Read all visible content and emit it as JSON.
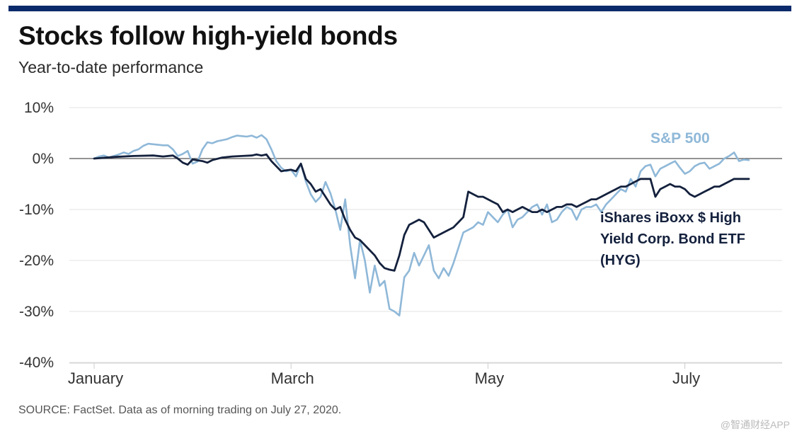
{
  "header": {
    "title": "Stocks follow high-yield bonds",
    "subtitle": "Year-to-date performance"
  },
  "footer": {
    "source": "SOURCE: FactSet. Data as of morning trading on July 27, 2020."
  },
  "watermark": "@智通财经APP",
  "colors": {
    "top_bar": "#0b2a6b",
    "sp500": "#8fb8d8",
    "hyg": "#14213d",
    "grid": "#e3e3e3",
    "zero_line": "#555555",
    "axis": "#cccccc"
  },
  "chart_data": {
    "type": "line",
    "title": "Stocks follow high-yield bonds",
    "subtitle": "Year-to-date performance",
    "xlabel": "",
    "ylabel": "",
    "x_unit": "trading days since Jan 2, 2020",
    "x_range": [
      0,
      140
    ],
    "ylim": [
      -40,
      10
    ],
    "y_ticks": [
      10,
      0,
      -10,
      -20,
      -30,
      -40
    ],
    "y_tick_labels": [
      "10%",
      "0%",
      "-10%",
      "-20%",
      "-30%",
      "-40%"
    ],
    "x_ticks": [
      0,
      40,
      80,
      120
    ],
    "x_tick_labels": [
      "January",
      "March",
      "May",
      "July"
    ],
    "grid": true,
    "series": [
      {
        "name": "S&P 500",
        "label": "S&P 500",
        "color": "#8fb8d8",
        "points": [
          [
            0,
            0
          ],
          [
            1,
            0.4
          ],
          [
            2,
            0.6
          ],
          [
            3,
            0.2
          ],
          [
            4,
            0.5
          ],
          [
            5,
            0.8
          ],
          [
            6,
            1.2
          ],
          [
            7,
            0.9
          ],
          [
            8,
            1.5
          ],
          [
            9,
            1.8
          ],
          [
            10,
            2.5
          ],
          [
            11,
            2.9
          ],
          [
            12,
            2.8
          ],
          [
            13,
            2.7
          ],
          [
            14,
            2.6
          ],
          [
            15,
            2.6
          ],
          [
            16,
            1.8
          ],
          [
            17,
            0.5
          ],
          [
            18,
            0.9
          ],
          [
            19,
            1.5
          ],
          [
            20,
            -1.0
          ],
          [
            21,
            -0.6
          ],
          [
            22,
            1.8
          ],
          [
            23,
            3.2
          ],
          [
            24,
            3.0
          ],
          [
            25,
            3.4
          ],
          [
            26,
            3.6
          ],
          [
            27,
            3.8
          ],
          [
            28,
            4.2
          ],
          [
            29,
            4.5
          ],
          [
            30,
            4.4
          ],
          [
            31,
            4.3
          ],
          [
            32,
            4.5
          ],
          [
            33,
            4.1
          ],
          [
            34,
            4.6
          ],
          [
            35,
            3.8
          ],
          [
            36,
            1.8
          ],
          [
            37,
            -0.5
          ],
          [
            38,
            -1.8
          ],
          [
            39,
            -2.5
          ],
          [
            40,
            -2.2
          ],
          [
            41,
            -3.5
          ],
          [
            42,
            -1.0
          ],
          [
            43,
            -4.5
          ],
          [
            44,
            -7.0
          ],
          [
            45,
            -8.5
          ],
          [
            46,
            -7.5
          ],
          [
            47,
            -4.6
          ],
          [
            48,
            -6.8
          ],
          [
            49,
            -10.0
          ],
          [
            50,
            -14.0
          ],
          [
            51,
            -8.0
          ],
          [
            52,
            -17.0
          ],
          [
            53,
            -23.5
          ],
          [
            54,
            -16.0
          ],
          [
            55,
            -20.0
          ],
          [
            56,
            -26.3
          ],
          [
            57,
            -21.0
          ],
          [
            58,
            -25.0
          ],
          [
            59,
            -24.0
          ],
          [
            60,
            -29.5
          ],
          [
            61,
            -30.0
          ],
          [
            62,
            -30.8
          ],
          [
            63,
            -23.3
          ],
          [
            64,
            -22.0
          ],
          [
            65,
            -18.5
          ],
          [
            66,
            -21.0
          ],
          [
            67,
            -19.0
          ],
          [
            68,
            -17.0
          ],
          [
            69,
            -22.0
          ],
          [
            70,
            -23.5
          ],
          [
            71,
            -21.5
          ],
          [
            72,
            -23.0
          ],
          [
            73,
            -20.5
          ],
          [
            74,
            -17.5
          ],
          [
            75,
            -14.5
          ],
          [
            76,
            -14.0
          ],
          [
            77,
            -13.5
          ],
          [
            78,
            -12.5
          ],
          [
            79,
            -13.0
          ],
          [
            80,
            -10.5
          ],
          [
            81,
            -11.5
          ],
          [
            82,
            -12.5
          ],
          [
            83,
            -11.0
          ],
          [
            84,
            -10.0
          ],
          [
            85,
            -13.5
          ],
          [
            86,
            -12.0
          ],
          [
            87,
            -11.5
          ],
          [
            88,
            -10.5
          ],
          [
            89,
            -9.5
          ],
          [
            90,
            -9.0
          ],
          [
            91,
            -11.0
          ],
          [
            92,
            -9.0
          ],
          [
            93,
            -12.5
          ],
          [
            94,
            -12.0
          ],
          [
            95,
            -10.5
          ],
          [
            96,
            -9.5
          ],
          [
            97,
            -10.0
          ],
          [
            98,
            -12.0
          ],
          [
            99,
            -10.0
          ],
          [
            100,
            -9.5
          ],
          [
            101,
            -9.5
          ],
          [
            102,
            -9.0
          ],
          [
            103,
            -10.5
          ],
          [
            104,
            -9.0
          ],
          [
            105,
            -8.0
          ],
          [
            106,
            -7.0
          ],
          [
            107,
            -6.0
          ],
          [
            108,
            -6.5
          ],
          [
            109,
            -4.0
          ],
          [
            110,
            -5.5
          ],
          [
            111,
            -2.5
          ],
          [
            112,
            -1.5
          ],
          [
            113,
            -1.2
          ],
          [
            114,
            -3.5
          ],
          [
            115,
            -2.0
          ],
          [
            116,
            -1.5
          ],
          [
            117,
            -1.0
          ],
          [
            118,
            -0.5
          ],
          [
            119,
            -1.8
          ],
          [
            120,
            -3.0
          ],
          [
            121,
            -2.5
          ],
          [
            122,
            -1.5
          ],
          [
            123,
            -1.0
          ],
          [
            124,
            -0.8
          ],
          [
            125,
            -2.0
          ],
          [
            126,
            -1.5
          ],
          [
            127,
            -1.0
          ],
          [
            128,
            0.0
          ],
          [
            129,
            0.5
          ],
          [
            130,
            1.2
          ],
          [
            131,
            -0.5
          ],
          [
            132,
            -0.2
          ],
          [
            133,
            -0.3
          ]
        ]
      },
      {
        "name": "iShares iBoxx $ High Yield Corp. Bond ETF (HYG)",
        "label_lines": [
          "iShares iBoxx $ High",
          "Yield Corp. Bond ETF",
          "(HYG)"
        ],
        "color": "#14213d",
        "points": [
          [
            0,
            0
          ],
          [
            4,
            0.3
          ],
          [
            8,
            0.5
          ],
          [
            12,
            0.6
          ],
          [
            14,
            0.4
          ],
          [
            16,
            0.6
          ],
          [
            17,
            0
          ],
          [
            18,
            -0.8
          ],
          [
            19,
            -1.2
          ],
          [
            20,
            -0.2
          ],
          [
            22,
            -0.5
          ],
          [
            23,
            -0.8
          ],
          [
            24,
            -0.3
          ],
          [
            26,
            0.2
          ],
          [
            28,
            0.4
          ],
          [
            30,
            0.5
          ],
          [
            32,
            0.6
          ],
          [
            33,
            0.8
          ],
          [
            34,
            0.6
          ],
          [
            35,
            0.8
          ],
          [
            36,
            -0.5
          ],
          [
            37,
            -1.5
          ],
          [
            38,
            -2.5
          ],
          [
            39,
            -2.3
          ],
          [
            40,
            -2.2
          ],
          [
            41,
            -2.5
          ],
          [
            42,
            -1.0
          ],
          [
            43,
            -4.0
          ],
          [
            44,
            -5.0
          ],
          [
            45,
            -6.5
          ],
          [
            46,
            -6.0
          ],
          [
            47,
            -7.5
          ],
          [
            48,
            -9.0
          ],
          [
            49,
            -10.0
          ],
          [
            50,
            -9.5
          ],
          [
            51,
            -12.0
          ],
          [
            52,
            -14.0
          ],
          [
            53,
            -15.5
          ],
          [
            54,
            -16.0
          ],
          [
            55,
            -17.0
          ],
          [
            56,
            -18.0
          ],
          [
            57,
            -19.0
          ],
          [
            58,
            -20.5
          ],
          [
            59,
            -21.5
          ],
          [
            60,
            -21.8
          ],
          [
            61,
            -22.0
          ],
          [
            62,
            -19.0
          ],
          [
            63,
            -15.0
          ],
          [
            64,
            -13.0
          ],
          [
            65,
            -12.5
          ],
          [
            66,
            -12.0
          ],
          [
            67,
            -12.5
          ],
          [
            68,
            -14.0
          ],
          [
            69,
            -15.5
          ],
          [
            70,
            -15.0
          ],
          [
            71,
            -14.5
          ],
          [
            72,
            -14.0
          ],
          [
            73,
            -13.5
          ],
          [
            74,
            -12.5
          ],
          [
            75,
            -11.5
          ],
          [
            76,
            -6.5
          ],
          [
            77,
            -7.0
          ],
          [
            78,
            -7.5
          ],
          [
            79,
            -7.5
          ],
          [
            80,
            -8.0
          ],
          [
            81,
            -8.5
          ],
          [
            82,
            -9.0
          ],
          [
            83,
            -10.5
          ],
          [
            84,
            -10.0
          ],
          [
            85,
            -10.5
          ],
          [
            86,
            -10.0
          ],
          [
            87,
            -9.5
          ],
          [
            88,
            -10.0
          ],
          [
            89,
            -10.5
          ],
          [
            90,
            -10.5
          ],
          [
            91,
            -10.0
          ],
          [
            92,
            -10.5
          ],
          [
            93,
            -10.0
          ],
          [
            94,
            -9.5
          ],
          [
            95,
            -9.5
          ],
          [
            96,
            -9.0
          ],
          [
            97,
            -9.0
          ],
          [
            98,
            -9.5
          ],
          [
            99,
            -9.0
          ],
          [
            100,
            -8.5
          ],
          [
            101,
            -8.0
          ],
          [
            102,
            -8.0
          ],
          [
            103,
            -7.5
          ],
          [
            104,
            -7.0
          ],
          [
            105,
            -6.5
          ],
          [
            106,
            -6.0
          ],
          [
            107,
            -5.5
          ],
          [
            108,
            -5.5
          ],
          [
            109,
            -5.0
          ],
          [
            110,
            -4.5
          ],
          [
            111,
            -4.0
          ],
          [
            112,
            -4.0
          ],
          [
            113,
            -4.0
          ],
          [
            114,
            -7.5
          ],
          [
            115,
            -6.0
          ],
          [
            116,
            -5.5
          ],
          [
            117,
            -5.0
          ],
          [
            118,
            -5.5
          ],
          [
            119,
            -5.5
          ],
          [
            120,
            -6.0
          ],
          [
            121,
            -7.0
          ],
          [
            122,
            -7.5
          ],
          [
            123,
            -7.0
          ],
          [
            124,
            -6.5
          ],
          [
            125,
            -6.0
          ],
          [
            126,
            -5.5
          ],
          [
            127,
            -5.5
          ],
          [
            128,
            -5.0
          ],
          [
            129,
            -4.5
          ],
          [
            130,
            -4.0
          ],
          [
            131,
            -4.0
          ],
          [
            132,
            -4.0
          ],
          [
            133,
            -4.0
          ]
        ]
      }
    ]
  }
}
